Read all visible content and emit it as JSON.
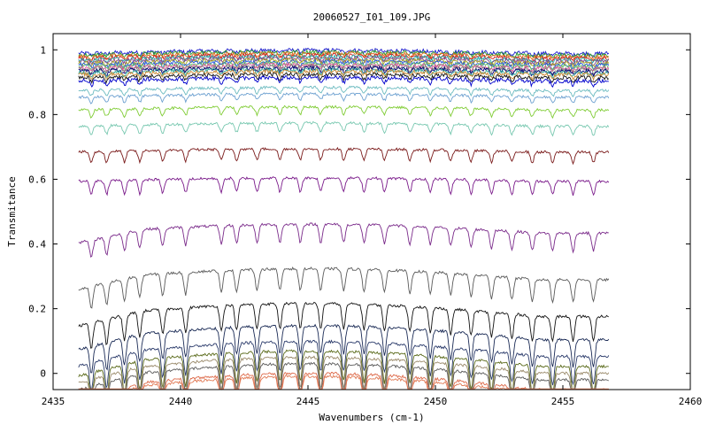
{
  "chart_data": {
    "type": "line",
    "title": "20060527_I01_109.JPG",
    "xlabel": "Wavenumbers (cm-1)",
    "ylabel": "Transmitance",
    "xlim": [
      2435,
      2460
    ],
    "ylim": [
      -0.05,
      1.05
    ],
    "x_ticks": [
      2435,
      2440,
      2445,
      2450,
      2455,
      2460
    ],
    "y_ticks": [
      0,
      0.2,
      0.4,
      0.6,
      0.8,
      1
    ],
    "y_tick_labels": [
      "0",
      "0.2",
      "0.4",
      "0.6",
      "0.8",
      "1"
    ],
    "x_data_range": [
      2436,
      2456.8
    ],
    "grid": false,
    "legend": "none",
    "absorption_lines": [
      2436.5,
      2437.1,
      2437.8,
      2438.4,
      2439.3,
      2440.2,
      2441.6,
      2442.2,
      2443.0,
      2443.9,
      2444.7,
      2445.5,
      2446.4,
      2447.2,
      2448.0,
      2449.0,
      2449.8,
      2450.6,
      2451.4,
      2452.2,
      2453.0,
      2453.8,
      2454.6,
      2455.4,
      2456.2
    ],
    "series": [
      {
        "color": "#1a1acc",
        "level": 0.995
      },
      {
        "color": "#2a9a2a",
        "level": 0.99
      },
      {
        "color": "#e07020",
        "level": 0.985
      },
      {
        "color": "#cc2222",
        "level": 0.98
      },
      {
        "color": "#22aaaa",
        "level": 0.975
      },
      {
        "color": "#884488",
        "level": 0.97
      },
      {
        "color": "#aaaa22",
        "level": 0.965
      },
      {
        "color": "#2255dd",
        "level": 0.96
      },
      {
        "color": "#66bb66",
        "level": 0.955
      },
      {
        "color": "#dd5599",
        "level": 0.95
      },
      {
        "color": "#777777",
        "level": 0.945
      },
      {
        "color": "#00007a",
        "level": 0.94
      },
      {
        "color": "#33aa99",
        "level": 0.935
      },
      {
        "color": "#cc8833",
        "level": 0.93
      },
      {
        "color": "#111111",
        "level": 0.92
      },
      {
        "color": "#0000cc",
        "level": 0.91
      },
      {
        "color": "#6cbbc0",
        "level": 0.88
      },
      {
        "color": "#6ca0d0",
        "level": 0.86
      },
      {
        "color": "#7fcc33",
        "level": 0.82
      },
      {
        "color": "#78c8b0",
        "level": 0.77
      },
      {
        "color": "#7a1a1a",
        "level": 0.69
      },
      {
        "color": "#7a1a8a",
        "level": 0.6
      },
      {
        "color": "#7a2a8a",
        "level": 0.45
      },
      {
        "color": "#5a5a5a",
        "level": 0.31
      },
      {
        "color": "#111111",
        "level": 0.2
      },
      {
        "color": "#1a2a55",
        "level": 0.13
      },
      {
        "color": "#2a3a6a",
        "level": 0.08
      },
      {
        "color": "#5a6a1a",
        "level": 0.05
      },
      {
        "color": "#9a8a6a",
        "level": 0.03
      },
      {
        "color": "#5a5a5a",
        "level": 0.01
      },
      {
        "color": "#dd6a4a",
        "level": -0.02
      },
      {
        "color": "#e07a55",
        "level": -0.03
      }
    ]
  }
}
